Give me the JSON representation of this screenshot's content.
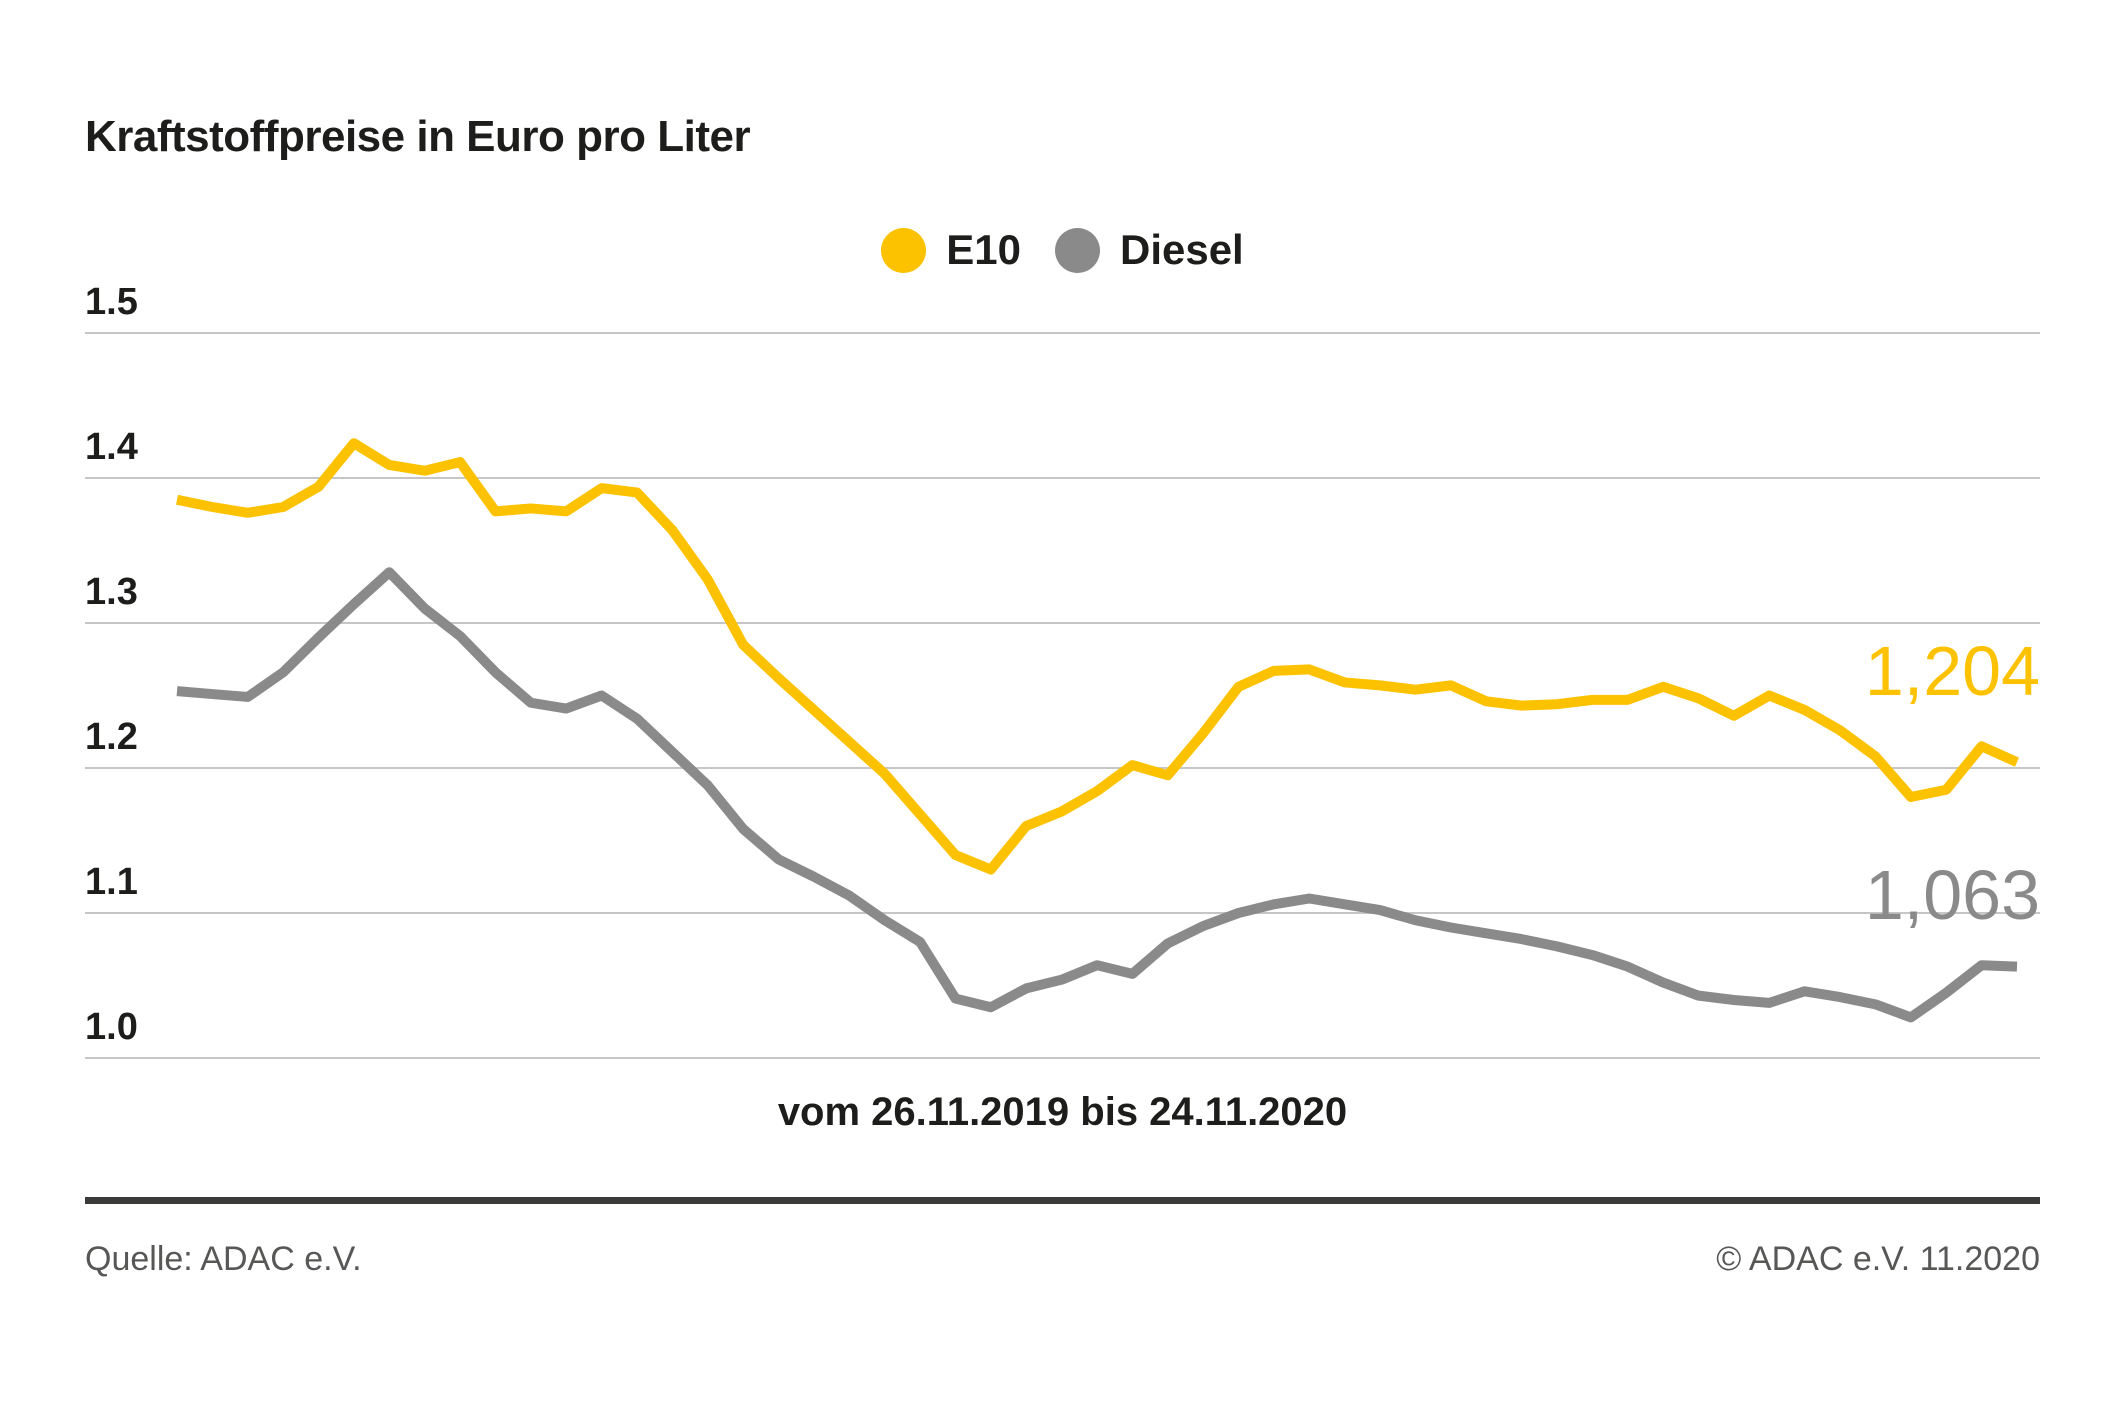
{
  "header": {
    "title": "Kraftstoffpreise in Euro pro Liter"
  },
  "chart_data": {
    "type": "line",
    "title": "Kraftstoffpreise in Euro pro Liter",
    "xlabel": "vom 26.11.2019 bis 24.11.2020",
    "ylabel": "",
    "x_start": "26.11.2019",
    "x_end": "24.11.2020",
    "x_unit": "week",
    "n_points": 53,
    "ylim": [
      1.0,
      1.5
    ],
    "yticks": [
      1.0,
      1.1,
      1.2,
      1.3,
      1.4,
      1.5
    ],
    "grid": true,
    "legend_position": "top-center",
    "colors": {
      "grid": "#C6C6C6",
      "text": "#1D1D1B",
      "footer_text": "#575756",
      "footer_rule": "#3A3A39"
    },
    "series": [
      {
        "name": "E10",
        "color": "#FCC200",
        "end_label": "1,204",
        "end_value": 1.204,
        "values": [
          1.385,
          1.38,
          1.376,
          1.38,
          1.394,
          1.424,
          1.409,
          1.405,
          1.411,
          1.377,
          1.379,
          1.377,
          1.393,
          1.39,
          1.364,
          1.33,
          1.285,
          1.262,
          1.24,
          1.218,
          1.196,
          1.168,
          1.14,
          1.13,
          1.16,
          1.17,
          1.184,
          1.202,
          1.195,
          1.224,
          1.256,
          1.267,
          1.268,
          1.259,
          1.257,
          1.254,
          1.257,
          1.246,
          1.243,
          1.244,
          1.247,
          1.247,
          1.256,
          1.248,
          1.236,
          1.25,
          1.24,
          1.226,
          1.208,
          1.18,
          1.185,
          1.215,
          1.204
        ]
      },
      {
        "name": "Diesel",
        "color": "#8A8A8A",
        "end_label": "1,063",
        "end_value": 1.063,
        "values": [
          1.253,
          1.251,
          1.249,
          1.266,
          1.29,
          1.313,
          1.335,
          1.31,
          1.291,
          1.266,
          1.245,
          1.241,
          1.25,
          1.234,
          1.211,
          1.188,
          1.158,
          1.137,
          1.125,
          1.112,
          1.095,
          1.08,
          1.041,
          1.035,
          1.048,
          1.054,
          1.064,
          1.058,
          1.079,
          1.091,
          1.1,
          1.106,
          1.11,
          1.106,
          1.102,
          1.095,
          1.09,
          1.086,
          1.082,
          1.077,
          1.071,
          1.063,
          1.052,
          1.043,
          1.04,
          1.038,
          1.046,
          1.042,
          1.037,
          1.028,
          1.045,
          1.064,
          1.063
        ]
      }
    ]
  },
  "footer": {
    "source": "Quelle: ADAC e.V.",
    "copyright": "© ADAC e.V. 11.2020"
  }
}
